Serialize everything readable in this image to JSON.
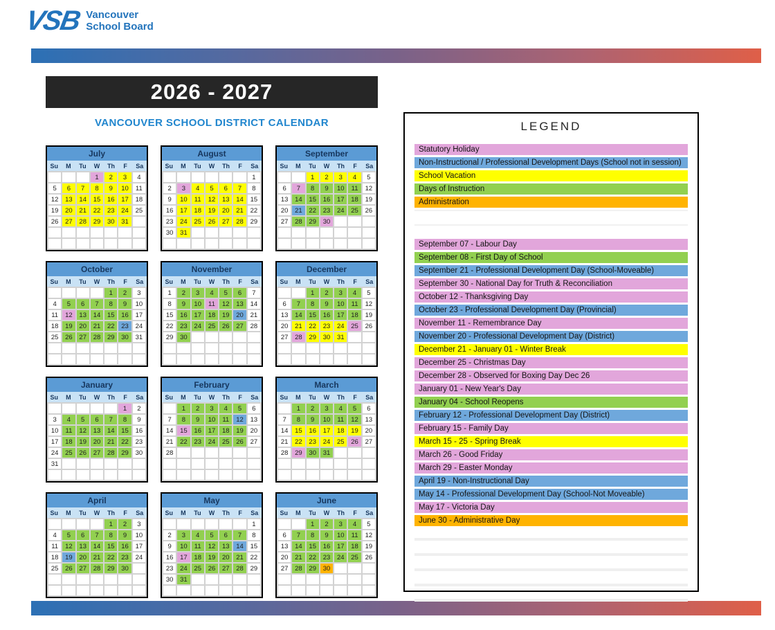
{
  "header": {
    "logo_vsb": "VSB",
    "logo_line1": "Vancouver",
    "logo_line2": "School Board",
    "year_title": "2026 - 2027",
    "subtitle": "VANCOUVER SCHOOL DISTRICT CALENDAR"
  },
  "colors": {
    "statutory_holiday": "#E2A6DB",
    "professional_development": "#6FA8DC",
    "school_vacation": "#FFFF00",
    "days_of_instruction": "#92D050",
    "administration": "#FFB300",
    "month_header_blue": "#5B9BD5",
    "weekday_row_blue": "#C9E2F5",
    "gradient_left_blue": "#2C70B5",
    "gradient_right_red": "#DF5F48",
    "title_box_black": "#262626",
    "subtitle_blue": "#2186CE",
    "logo_blue": "#2374BC"
  },
  "color_codes": {
    "p": "statutory_holiday",
    "b": "professional_development",
    "y": "school_vacation",
    "g": "days_of_instruction",
    "o": "administration"
  },
  "calendar": {
    "dow": [
      "Su",
      "M",
      "Tu",
      "W",
      "Th",
      "F",
      "Sa"
    ],
    "months": [
      {
        "name": "July",
        "weeks": [
          [
            "",
            "",
            "",
            "1p",
            "2y",
            "3y",
            "4"
          ],
          [
            "5",
            "6y",
            "7y",
            "8y",
            "9y",
            "10y",
            "11"
          ],
          [
            "12",
            "13y",
            "14y",
            "15y",
            "16y",
            "17y",
            "18"
          ],
          [
            "19",
            "20y",
            "21y",
            "22y",
            "23y",
            "24y",
            "25"
          ],
          [
            "26",
            "27y",
            "28y",
            "29y",
            "30y",
            "31y",
            ""
          ],
          [
            "",
            "",
            "",
            "",
            "",
            "",
            ""
          ],
          [
            "",
            "",
            "",
            "",
            "",
            "",
            ""
          ]
        ]
      },
      {
        "name": "August",
        "weeks": [
          [
            "",
            "",
            "",
            "",
            "",
            "",
            "1"
          ],
          [
            "2",
            "3p",
            "4y",
            "5y",
            "6y",
            "7y",
            "8"
          ],
          [
            "9",
            "10y",
            "11y",
            "12y",
            "13y",
            "14y",
            "15"
          ],
          [
            "16",
            "17y",
            "18y",
            "19y",
            "20y",
            "21y",
            "22"
          ],
          [
            "23",
            "24y",
            "25y",
            "26y",
            "27y",
            "28y",
            "29"
          ],
          [
            "30",
            "31y",
            "",
            "",
            "",
            "",
            ""
          ],
          [
            "",
            "",
            "",
            "",
            "",
            "",
            ""
          ]
        ]
      },
      {
        "name": "September",
        "weeks": [
          [
            "",
            "",
            "1y",
            "2y",
            "3y",
            "4y",
            "5"
          ],
          [
            "6",
            "7p",
            "8g",
            "9g",
            "10g",
            "11g",
            "12"
          ],
          [
            "13",
            "14g",
            "15g",
            "16g",
            "17g",
            "18g",
            "19"
          ],
          [
            "20",
            "21b",
            "22g",
            "23g",
            "24g",
            "25g",
            "26"
          ],
          [
            "27",
            "28g",
            "29g",
            "30p",
            "",
            "",
            ""
          ],
          [
            "",
            "",
            "",
            "",
            "",
            "",
            ""
          ],
          [
            "",
            "",
            "",
            "",
            "",
            "",
            ""
          ]
        ]
      },
      {
        "name": "October",
        "weeks": [
          [
            "",
            "",
            "",
            "",
            "1g",
            "2g",
            "3"
          ],
          [
            "4",
            "5g",
            "6g",
            "7g",
            "8g",
            "9g",
            "10"
          ],
          [
            "11",
            "12p",
            "13g",
            "14g",
            "15g",
            "16g",
            "17"
          ],
          [
            "18",
            "19g",
            "20g",
            "21g",
            "22g",
            "23b",
            "24"
          ],
          [
            "25",
            "26g",
            "27g",
            "28g",
            "29g",
            "30g",
            "31"
          ],
          [
            "",
            "",
            "",
            "",
            "",
            "",
            ""
          ],
          [
            "",
            "",
            "",
            "",
            "",
            "",
            ""
          ]
        ]
      },
      {
        "name": "November",
        "weeks": [
          [
            "1",
            "2g",
            "3g",
            "4g",
            "5g",
            "6g",
            "7"
          ],
          [
            "8",
            "9g",
            "10g",
            "11p",
            "12g",
            "13g",
            "14"
          ],
          [
            "15",
            "16g",
            "17g",
            "18g",
            "19g",
            "20b",
            "21"
          ],
          [
            "22",
            "23g",
            "24g",
            "25g",
            "26g",
            "27g",
            "28"
          ],
          [
            "29",
            "30g",
            "",
            "",
            "",
            "",
            ""
          ],
          [
            "",
            "",
            "",
            "",
            "",
            "",
            ""
          ],
          [
            "",
            "",
            "",
            "",
            "",
            "",
            ""
          ]
        ]
      },
      {
        "name": "December",
        "weeks": [
          [
            "",
            "",
            "1g",
            "2g",
            "3g",
            "4g",
            "5"
          ],
          [
            "6",
            "7g",
            "8g",
            "9g",
            "10g",
            "11g",
            "12"
          ],
          [
            "13",
            "14g",
            "15g",
            "16g",
            "17g",
            "18g",
            "19"
          ],
          [
            "20",
            "21y",
            "22y",
            "23y",
            "24y",
            "25p",
            "26"
          ],
          [
            "27",
            "28p",
            "29y",
            "30y",
            "31y",
            "",
            ""
          ],
          [
            "",
            "",
            "",
            "",
            "",
            "",
            ""
          ],
          [
            "",
            "",
            "",
            "",
            "",
            "",
            ""
          ]
        ]
      },
      {
        "name": "January",
        "weeks": [
          [
            "",
            "",
            "",
            "",
            "",
            "1p",
            "2"
          ],
          [
            "3",
            "4g",
            "5g",
            "6g",
            "7g",
            "8g",
            "9"
          ],
          [
            "10",
            "11g",
            "12g",
            "13g",
            "14g",
            "15g",
            "16"
          ],
          [
            "17",
            "18g",
            "19g",
            "20g",
            "21g",
            "22g",
            "23"
          ],
          [
            "24",
            "25g",
            "26g",
            "27g",
            "28g",
            "29g",
            "30"
          ],
          [
            "31",
            "",
            "",
            "",
            "",
            "",
            ""
          ],
          [
            "",
            "",
            "",
            "",
            "",
            "",
            ""
          ]
        ]
      },
      {
        "name": "February",
        "weeks": [
          [
            "",
            "1g",
            "2g",
            "3g",
            "4g",
            "5g",
            "6"
          ],
          [
            "7",
            "8g",
            "9g",
            "10g",
            "11g",
            "12b",
            "13"
          ],
          [
            "14",
            "15p",
            "16g",
            "17g",
            "18g",
            "19g",
            "20"
          ],
          [
            "21",
            "22g",
            "23g",
            "24g",
            "25g",
            "26g",
            "27"
          ],
          [
            "28",
            "",
            "",
            "",
            "",
            "",
            ""
          ],
          [
            "",
            "",
            "",
            "",
            "",
            "",
            ""
          ],
          [
            "",
            "",
            "",
            "",
            "",
            "",
            ""
          ]
        ]
      },
      {
        "name": "March",
        "weeks": [
          [
            "",
            "1g",
            "2g",
            "3g",
            "4g",
            "5g",
            "6"
          ],
          [
            "7",
            "8g",
            "9g",
            "10g",
            "11g",
            "12g",
            "13"
          ],
          [
            "14",
            "15y",
            "16y",
            "17y",
            "18y",
            "19y",
            "20"
          ],
          [
            "21",
            "22y",
            "23y",
            "24y",
            "25y",
            "26p",
            "27"
          ],
          [
            "28",
            "29p",
            "30g",
            "31g",
            "",
            "",
            ""
          ],
          [
            "",
            "",
            "",
            "",
            "",
            "",
            ""
          ],
          [
            "",
            "",
            "",
            "",
            "",
            "",
            ""
          ]
        ]
      },
      {
        "name": "April",
        "weeks": [
          [
            "",
            "",
            "",
            "",
            "1g",
            "2g",
            "3"
          ],
          [
            "4",
            "5g",
            "6g",
            "7g",
            "8g",
            "9g",
            "10"
          ],
          [
            "11",
            "12g",
            "13g",
            "14g",
            "15g",
            "16g",
            "17"
          ],
          [
            "18",
            "19b",
            "20g",
            "21g",
            "22g",
            "23g",
            "24"
          ],
          [
            "25",
            "26g",
            "27g",
            "28g",
            "29g",
            "30g",
            ""
          ],
          [
            "",
            "",
            "",
            "",
            "",
            "",
            ""
          ],
          [
            "",
            "",
            "",
            "",
            "",
            "",
            ""
          ]
        ]
      },
      {
        "name": "May",
        "weeks": [
          [
            "",
            "",
            "",
            "",
            "",
            "",
            "1"
          ],
          [
            "2",
            "3g",
            "4g",
            "5g",
            "6g",
            "7g",
            "8"
          ],
          [
            "9",
            "10g",
            "11g",
            "12g",
            "13g",
            "14b",
            "15"
          ],
          [
            "16",
            "17p",
            "18g",
            "19g",
            "20g",
            "21g",
            "22"
          ],
          [
            "23",
            "24g",
            "25g",
            "26g",
            "27g",
            "28g",
            "29"
          ],
          [
            "30",
            "31g",
            "",
            "",
            "",
            "",
            ""
          ],
          [
            "",
            "",
            "",
            "",
            "",
            "",
            ""
          ]
        ]
      },
      {
        "name": "June",
        "weeks": [
          [
            "",
            "",
            "1g",
            "2g",
            "3g",
            "4g",
            "5"
          ],
          [
            "6",
            "7g",
            "8g",
            "9g",
            "10g",
            "11g",
            "12"
          ],
          [
            "13",
            "14g",
            "15g",
            "16g",
            "17g",
            "18g",
            "19"
          ],
          [
            "20",
            "21g",
            "22g",
            "23g",
            "24g",
            "25g",
            "26"
          ],
          [
            "27",
            "28g",
            "29g",
            "30o",
            "",
            "",
            ""
          ],
          [
            "",
            "",
            "",
            "",
            "",
            "",
            ""
          ],
          [
            "",
            "",
            "",
            "",
            "",
            "",
            ""
          ]
        ]
      }
    ]
  },
  "legend": {
    "title": "LEGEND",
    "key_items": [
      {
        "label": "Statutory Holiday",
        "code": "p"
      },
      {
        "label": "Non-Instructional / Professional Development Days (School not in session)",
        "code": "b"
      },
      {
        "label": "School Vacation",
        "code": "y"
      },
      {
        "label": "Days of Instruction",
        "code": "g"
      },
      {
        "label": "Administration",
        "code": "o"
      }
    ],
    "events": [
      {
        "label": "September 07 - Labour Day",
        "code": "p"
      },
      {
        "label": "September 08 - First Day of School",
        "code": "g"
      },
      {
        "label": "September 21 - Professional Development Day (School-Moveable)",
        "code": "b"
      },
      {
        "label": "September 30 - National Day for Truth & Reconciliation",
        "code": "p"
      },
      {
        "label": "October 12 - Thanksgiving Day",
        "code": "p"
      },
      {
        "label": "October 23 - Professional Development Day (Provincial)",
        "code": "b"
      },
      {
        "label": "November 11 - Remembrance Day",
        "code": "p"
      },
      {
        "label": "November 20 - Professional Development Day (District)",
        "code": "b"
      },
      {
        "label": "December 21 - January 01 - Winter Break",
        "code": "y"
      },
      {
        "label": "December 25 - Christmas Day",
        "code": "p"
      },
      {
        "label": "December 28 - Observed for Boxing Day Dec 26",
        "code": "p"
      },
      {
        "label": "January 01 - New Year's Day",
        "code": "p"
      },
      {
        "label": "January 04 - School Reopens",
        "code": "g"
      },
      {
        "label": "February 12 - Professional Development Day (District)",
        "code": "b"
      },
      {
        "label": "February 15 - Family Day",
        "code": "p"
      },
      {
        "label": "March 15 - 25 - Spring Break",
        "code": "y"
      },
      {
        "label": "March 26 - Good Friday",
        "code": "p"
      },
      {
        "label": "March 29 - Easter Monday",
        "code": "p"
      },
      {
        "label": "April 19 - Non-Instructional Day",
        "code": "b"
      },
      {
        "label": "May 14 - Professional Development Day (School-Not Moveable)",
        "code": "b"
      },
      {
        "label": "May 17 - Victoria Day",
        "code": "p"
      },
      {
        "label": "June 30 - Administrative Day",
        "code": "o"
      }
    ]
  }
}
